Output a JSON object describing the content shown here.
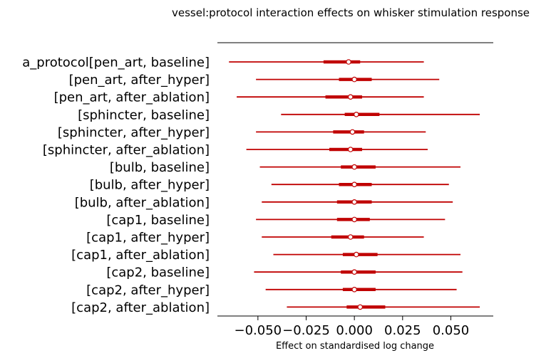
{
  "chart_data": {
    "type": "forest",
    "title": "vessel:protocol interaction effects on whisker stimulation response",
    "xlabel": "Effect on standardised log change",
    "xlim": [
      -0.071,
      0.072
    ],
    "xticks": [
      -0.05,
      -0.025,
      0.0,
      0.025,
      0.05
    ],
    "xtick_labels": [
      "−0.050",
      "−0.025",
      "0.000",
      "0.025",
      "0.050"
    ],
    "grid": false,
    "color": "#c00000",
    "rows": [
      {
        "label": "a_protocol[pen_art, baseline]",
        "mean": -0.003,
        "hdi": [
          -0.065,
          0.036
        ],
        "iqr": [
          -0.016,
          0.003
        ]
      },
      {
        "label": "[pen_art, after_hyper]",
        "mean": 0.0,
        "hdi": [
          -0.051,
          0.044
        ],
        "iqr": [
          -0.008,
          0.009
        ]
      },
      {
        "label": "[pen_art, after_ablation]",
        "mean": -0.002,
        "hdi": [
          -0.061,
          0.036
        ],
        "iqr": [
          -0.015,
          0.004
        ]
      },
      {
        "label": "[sphincter, baseline]",
        "mean": 0.001,
        "hdi": [
          -0.038,
          0.065
        ],
        "iqr": [
          -0.005,
          0.013
        ]
      },
      {
        "label": "[sphincter, after_hyper]",
        "mean": -0.001,
        "hdi": [
          -0.051,
          0.037
        ],
        "iqr": [
          -0.011,
          0.005
        ]
      },
      {
        "label": "[sphincter, after_ablation]",
        "mean": -0.002,
        "hdi": [
          -0.056,
          0.038
        ],
        "iqr": [
          -0.013,
          0.004
        ]
      },
      {
        "label": "[bulb, baseline]",
        "mean": 0.0,
        "hdi": [
          -0.049,
          0.055
        ],
        "iqr": [
          -0.007,
          0.011
        ]
      },
      {
        "label": "[bulb, after_hyper]",
        "mean": 0.0,
        "hdi": [
          -0.043,
          0.049
        ],
        "iqr": [
          -0.008,
          0.009
        ]
      },
      {
        "label": "[bulb, after_ablation]",
        "mean": 0.0,
        "hdi": [
          -0.048,
          0.051
        ],
        "iqr": [
          -0.009,
          0.009
        ]
      },
      {
        "label": "[cap1, baseline]",
        "mean": 0.0,
        "hdi": [
          -0.051,
          0.047
        ],
        "iqr": [
          -0.009,
          0.008
        ]
      },
      {
        "label": "[cap1, after_hyper]",
        "mean": -0.002,
        "hdi": [
          -0.048,
          0.036
        ],
        "iqr": [
          -0.012,
          0.005
        ]
      },
      {
        "label": "[cap1, after_ablation]",
        "mean": 0.001,
        "hdi": [
          -0.042,
          0.055
        ],
        "iqr": [
          -0.006,
          0.012
        ]
      },
      {
        "label": "[cap2, baseline]",
        "mean": 0.0,
        "hdi": [
          -0.052,
          0.056
        ],
        "iqr": [
          -0.007,
          0.011
        ]
      },
      {
        "label": "[cap2, after_hyper]",
        "mean": 0.0,
        "hdi": [
          -0.046,
          0.053
        ],
        "iqr": [
          -0.006,
          0.011
        ]
      },
      {
        "label": "[cap2, after_ablation]",
        "mean": 0.003,
        "hdi": [
          -0.035,
          0.065
        ],
        "iqr": [
          -0.004,
          0.016
        ]
      }
    ]
  }
}
